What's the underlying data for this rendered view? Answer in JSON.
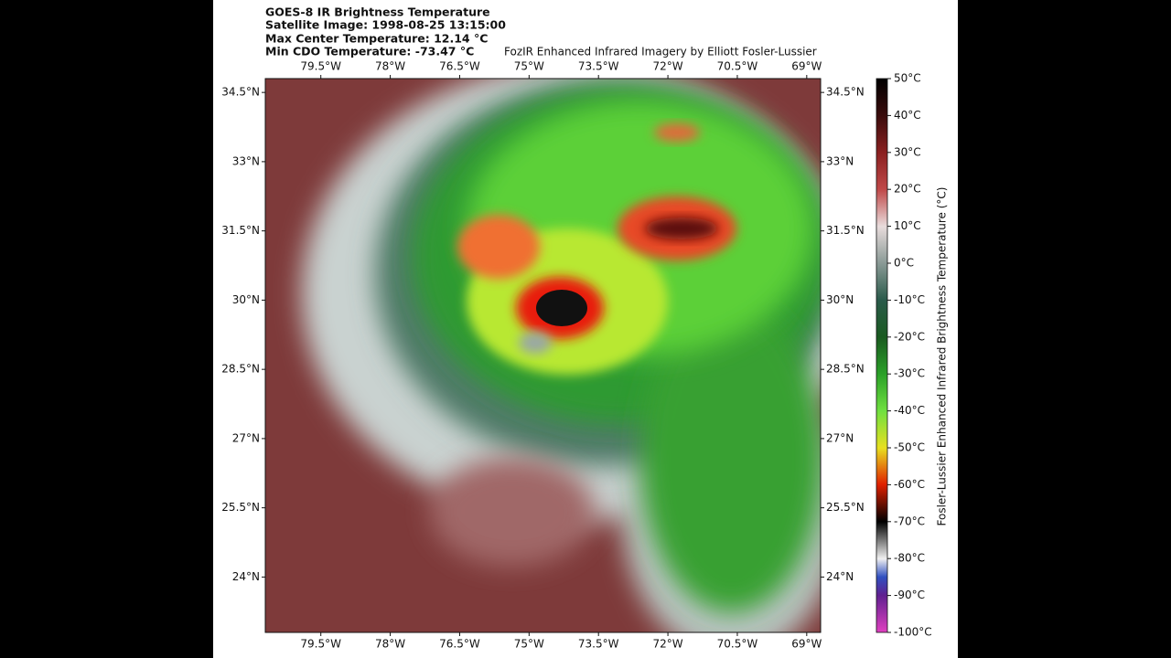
{
  "header": {
    "lines": [
      "GOES-8 IR Brightness Temperature",
      "Satellite Image: 1998-08-25 13:15:00",
      "Max Center Temperature: 12.14 °C",
      "Min CDO Temperature: -73.47 °C"
    ],
    "credit": "FozIR Enhanced Infrared Imagery by Elliott Fosler-Lussier"
  },
  "map": {
    "xlim": [
      -80.7,
      -68.7
    ],
    "ylim": [
      22.8,
      34.8
    ],
    "xticks": [
      {
        "value": -79.5,
        "label": "79.5°W"
      },
      {
        "value": -78,
        "label": "78°W"
      },
      {
        "value": -76.5,
        "label": "76.5°W"
      },
      {
        "value": -75,
        "label": "75°W"
      },
      {
        "value": -73.5,
        "label": "73.5°W"
      },
      {
        "value": -72,
        "label": "72°W"
      },
      {
        "value": -70.5,
        "label": "70.5°W"
      },
      {
        "value": -69,
        "label": "69°W"
      }
    ],
    "yticks": [
      {
        "value": 34.5,
        "label": "34.5°N"
      },
      {
        "value": 33,
        "label": "33°N"
      },
      {
        "value": 31.5,
        "label": "31.5°N"
      },
      {
        "value": 30,
        "label": "30°N"
      },
      {
        "value": 28.5,
        "label": "28.5°N"
      },
      {
        "value": 27,
        "label": "27°N"
      },
      {
        "value": 25.5,
        "label": "25.5°N"
      },
      {
        "value": 24,
        "label": "24°N"
      }
    ]
  },
  "colorbar": {
    "label": "Fosler-Lussier Enhanced Infrared Brightness Temperature (°C)",
    "lim": [
      -100,
      50
    ],
    "ticks": [
      {
        "value": 50,
        "label": "50°C"
      },
      {
        "value": 40,
        "label": "40°C"
      },
      {
        "value": 30,
        "label": "30°C"
      },
      {
        "value": 20,
        "label": "20°C"
      },
      {
        "value": 10,
        "label": "10°C"
      },
      {
        "value": 0,
        "label": "0°C"
      },
      {
        "value": -10,
        "label": "-10°C"
      },
      {
        "value": -20,
        "label": "-20°C"
      },
      {
        "value": -30,
        "label": "-30°C"
      },
      {
        "value": -40,
        "label": "-40°C"
      },
      {
        "value": -50,
        "label": "-50°C"
      },
      {
        "value": -60,
        "label": "-60°C"
      },
      {
        "value": -70,
        "label": "-70°C"
      },
      {
        "value": -80,
        "label": "-80°C"
      },
      {
        "value": -90,
        "label": "-90°C"
      },
      {
        "value": -100,
        "label": "-100°C"
      }
    ]
  }
}
